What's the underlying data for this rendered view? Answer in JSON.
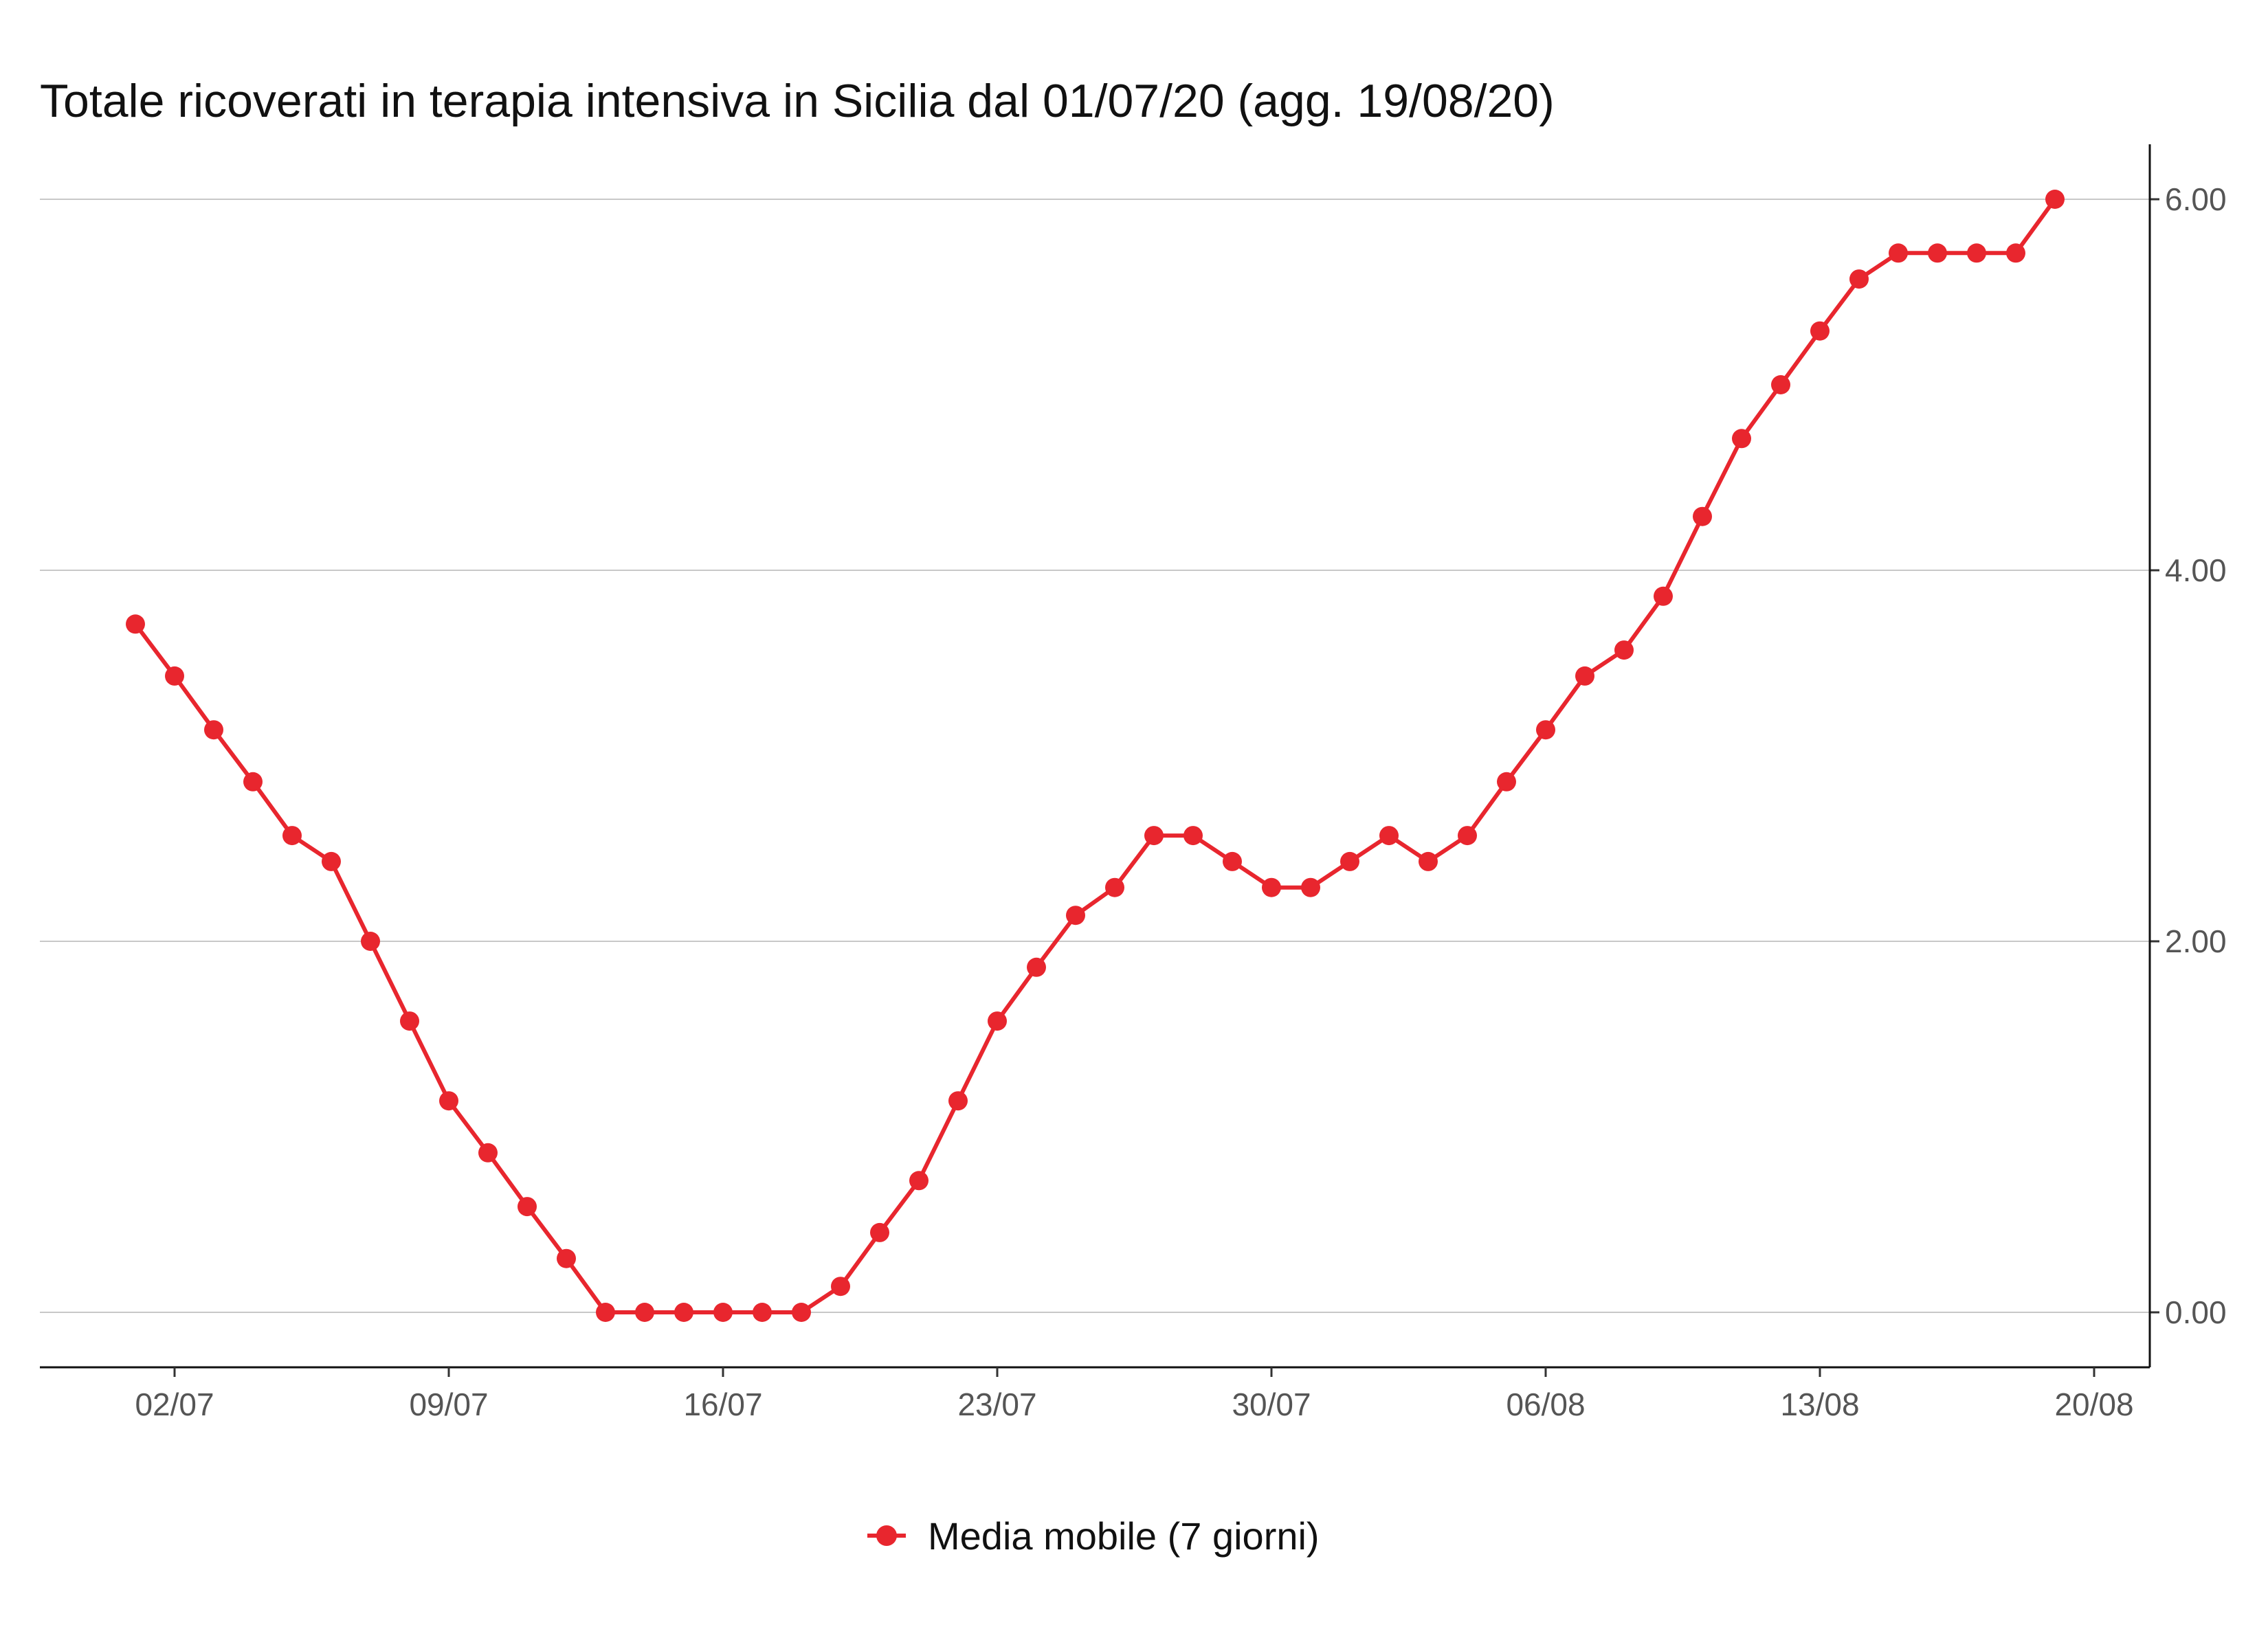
{
  "chart_data": {
    "type": "line",
    "title": "Totale ricoverati in terapia intensiva in Sicilia dal 01/07/20 (agg. 19/08/20)",
    "xlabel": "",
    "ylabel": "",
    "x_start": "01/07",
    "x_end": "19/08",
    "x": [
      "01/07",
      "02/07",
      "03/07",
      "04/07",
      "05/07",
      "06/07",
      "07/07",
      "08/07",
      "09/07",
      "10/07",
      "11/07",
      "12/07",
      "13/07",
      "14/07",
      "15/07",
      "16/07",
      "17/07",
      "18/07",
      "19/07",
      "20/07",
      "21/07",
      "22/07",
      "23/07",
      "24/07",
      "25/07",
      "26/07",
      "27/07",
      "28/07",
      "29/07",
      "30/07",
      "31/07",
      "01/08",
      "02/08",
      "03/08",
      "04/08",
      "05/08",
      "06/08",
      "07/08",
      "08/08",
      "09/08",
      "10/08",
      "11/08",
      "12/08",
      "13/08",
      "14/08",
      "15/08",
      "16/08",
      "17/08",
      "18/08",
      "19/08"
    ],
    "x_ticks": [
      "02/07",
      "09/07",
      "16/07",
      "23/07",
      "30/07",
      "06/08",
      "13/08",
      "20/08"
    ],
    "x_tick_positions": [
      1,
      8,
      15,
      22,
      29,
      36,
      43,
      50
    ],
    "ylim": [
      0,
      6
    ],
    "y_ticks": [
      "0.00",
      "2.00",
      "4.00",
      "6.00"
    ],
    "y_tick_values": [
      0,
      2,
      4,
      6
    ],
    "y_axis_side": "right",
    "grid": "horizontal",
    "legend_position": "bottom-center",
    "series": [
      {
        "name": "Media mobile (7 giorni)",
        "color": "#e8262e",
        "marker": "circle",
        "values": [
          3.71,
          3.43,
          3.14,
          2.86,
          2.57,
          2.43,
          2.0,
          1.57,
          1.14,
          0.86,
          0.57,
          0.29,
          0,
          0,
          0,
          0,
          0,
          0,
          0.14,
          0.43,
          0.71,
          1.14,
          1.57,
          1.86,
          2.14,
          2.29,
          2.57,
          2.57,
          2.43,
          2.29,
          2.29,
          2.43,
          2.57,
          2.43,
          2.57,
          2.86,
          3.14,
          3.43,
          3.57,
          3.86,
          4.29,
          4.71,
          5.0,
          5.29,
          5.57,
          5.71,
          5.71,
          5.71,
          5.71,
          6.0
        ]
      }
    ]
  }
}
